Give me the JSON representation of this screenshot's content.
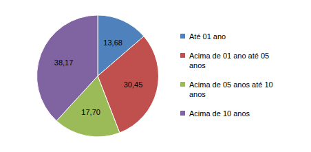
{
  "chart_data": {
    "type": "pie",
    "categories": [
      "Até 01 ano",
      "Acima de 01 ano até 05 anos",
      "Acima de 05 anos até 10 anos",
      "Acima de 10 anos"
    ],
    "values": [
      13.68,
      30.45,
      17.7,
      38.17
    ],
    "value_labels": [
      "13,68",
      "30,45",
      "17,70",
      "38,17"
    ],
    "colors": [
      "#4f81bd",
      "#c0504d",
      "#9bbb59",
      "#8064a2"
    ],
    "data_labels": true,
    "legend": "right"
  }
}
